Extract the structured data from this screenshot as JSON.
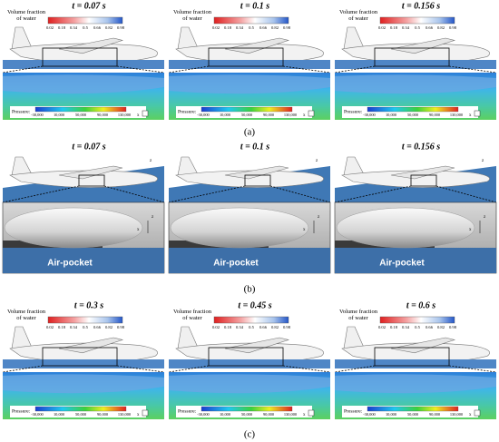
{
  "volume_fraction": {
    "title": "Volume fraction of water",
    "ticks": [
      "0.02",
      "0.18",
      "0.34",
      "0.5",
      "0.66",
      "0.82",
      "0.98"
    ]
  },
  "pressure": {
    "label": "Pressure:",
    "ticks": [
      "-30,000",
      "10,000",
      "50,000",
      "90,000",
      "130,000"
    ]
  },
  "axes": {
    "x": "x",
    "y": "y",
    "z": "z"
  },
  "rows": [
    {
      "label": "(a)",
      "frames": [
        "t = 0.07 s",
        "t = 0.1 s",
        "t = 0.156 s"
      ]
    },
    {
      "label": "(b)",
      "frames": [
        "t = 0.07 s",
        "t = 0.1 s",
        "t = 0.156 s"
      ],
      "annotation": "Air-pocket"
    },
    {
      "label": "(c)",
      "frames": [
        "t = 0.3 s",
        "t = 0.45 s",
        "t = 0.6 s"
      ]
    }
  ]
}
